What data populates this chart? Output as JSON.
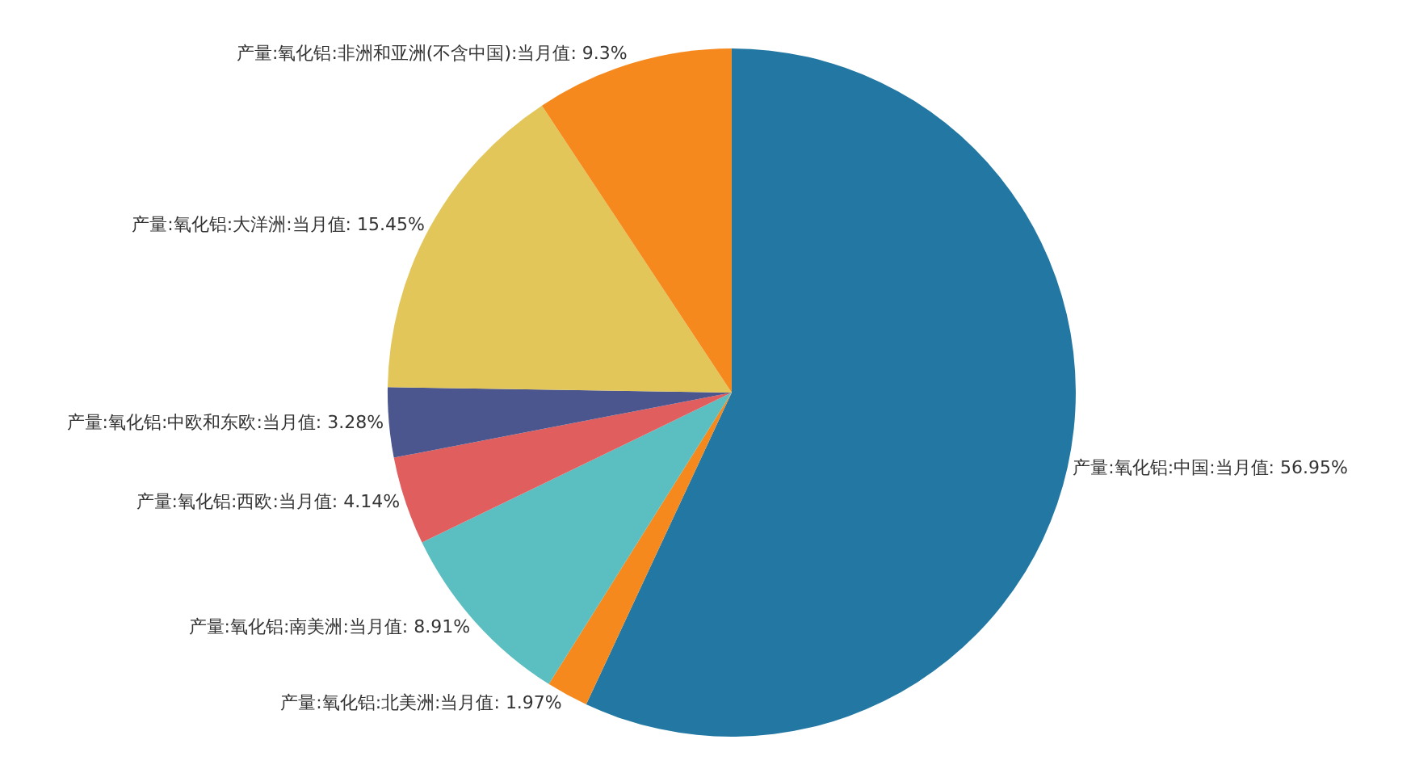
{
  "chart_data": {
    "type": "pie",
    "categories": [
      "产量:氧化铝:中国:当月值",
      "产量:氧化铝:北美洲:当月值",
      "产量:氧化铝:南美洲:当月值",
      "产量:氧化铝:西欧:当月值",
      "产量:氧化铝:中欧和东欧:当月值",
      "产量:氧化铝:大洋洲:当月值",
      "产量:氧化铝:非洲和亚洲(不含中国):当月值"
    ],
    "values": [
      56.95,
      1.97,
      8.91,
      4.14,
      3.28,
      15.45,
      9.3
    ],
    "value_labels": [
      "56.95%",
      "1.97%",
      "8.91%",
      "4.14%",
      "3.28%",
      "15.45%",
      "9.3%"
    ],
    "colors": [
      "#2277a3",
      "#f5891e",
      "#5bbec0",
      "#e05e5e",
      "#4a568d",
      "#e2c65a",
      "#f5891e"
    ],
    "legend": false
  }
}
